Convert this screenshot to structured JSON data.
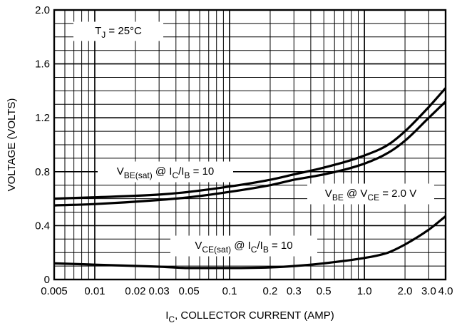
{
  "chart_data": {
    "type": "line",
    "xscale": "log",
    "xlim": [
      0.005,
      4.0
    ],
    "ylim": [
      0,
      2.0
    ],
    "grid": true,
    "xlabel": {
      "main": "I",
      "sub": "C",
      "rest": ", COLLECTOR CURRENT (AMP)"
    },
    "ylabel": "VOLTAGE (VOLTS)",
    "x_ticks": [
      {
        "value": 0.005,
        "label": "0.005"
      },
      {
        "value": 0.01,
        "label": "0.01"
      },
      {
        "value": 0.02,
        "label": "0.02"
      },
      {
        "value": 0.03,
        "label": "0.03"
      },
      {
        "value": 0.05,
        "label": "0.05"
      },
      {
        "value": 0.1,
        "label": "0.1"
      },
      {
        "value": 0.2,
        "label": "0.2"
      },
      {
        "value": 0.3,
        "label": "0.3"
      },
      {
        "value": 0.5,
        "label": "0.5"
      },
      {
        "value": 1.0,
        "label": "1.0"
      },
      {
        "value": 2.0,
        "label": "2.0"
      },
      {
        "value": 3.0,
        "label": "3.0"
      },
      {
        "value": 4.0,
        "label": "4.0"
      }
    ],
    "y_ticks": [
      {
        "value": 0,
        "label": "0"
      },
      {
        "value": 0.4,
        "label": "0.4"
      },
      {
        "value": 0.8,
        "label": "0.8"
      },
      {
        "value": 1.2,
        "label": "1.2"
      },
      {
        "value": 1.6,
        "label": "1.6"
      },
      {
        "value": 2.0,
        "label": "2.0"
      }
    ],
    "series": [
      {
        "name": "VBE(sat) @ IC/IB = 10",
        "x": [
          0.005,
          0.01,
          0.03,
          0.05,
          0.1,
          0.2,
          0.3,
          0.5,
          1.0,
          1.5,
          2.0,
          3.0,
          4.0
        ],
        "y": [
          0.6,
          0.61,
          0.63,
          0.65,
          0.69,
          0.74,
          0.78,
          0.83,
          0.92,
          1.0,
          1.1,
          1.28,
          1.42
        ]
      },
      {
        "name": "VBE @ VCE = 2.0 V",
        "x": [
          0.005,
          0.01,
          0.03,
          0.05,
          0.1,
          0.2,
          0.3,
          0.5,
          1.0,
          1.5,
          2.0,
          3.0,
          4.0
        ],
        "y": [
          0.55,
          0.56,
          0.59,
          0.61,
          0.65,
          0.7,
          0.74,
          0.78,
          0.86,
          0.94,
          1.03,
          1.2,
          1.32
        ]
      },
      {
        "name": "VCE(sat) @ IC/IB = 10",
        "x": [
          0.005,
          0.01,
          0.03,
          0.05,
          0.1,
          0.2,
          0.3,
          0.5,
          1.0,
          1.5,
          2.0,
          3.0,
          4.0
        ],
        "y": [
          0.12,
          0.11,
          0.095,
          0.085,
          0.085,
          0.09,
          0.1,
          0.12,
          0.16,
          0.2,
          0.26,
          0.37,
          0.47
        ]
      }
    ],
    "annotations": [
      {
        "parts": [
          [
            "T",
            ""
          ],
          [
            "J",
            "sub"
          ],
          [
            " = 25°C",
            ""
          ]
        ]
      },
      {
        "parts": [
          [
            "V",
            ""
          ],
          [
            "BE(sat)",
            "sub"
          ],
          [
            " @ I",
            ""
          ],
          [
            "C",
            "sub"
          ],
          [
            "/I",
            ""
          ],
          [
            "B",
            "sub"
          ],
          [
            " = 10",
            ""
          ]
        ]
      },
      {
        "parts": [
          [
            "V",
            ""
          ],
          [
            "BE",
            "sub"
          ],
          [
            " @ V",
            ""
          ],
          [
            "CE",
            "sub"
          ],
          [
            " = 2.0 V",
            ""
          ]
        ]
      },
      {
        "parts": [
          [
            "V",
            ""
          ],
          [
            "CE(sat)",
            "sub"
          ],
          [
            " @ I",
            ""
          ],
          [
            "C",
            "sub"
          ],
          [
            "/I",
            ""
          ],
          [
            "B",
            "sub"
          ],
          [
            " = 10",
            ""
          ]
        ]
      }
    ]
  }
}
